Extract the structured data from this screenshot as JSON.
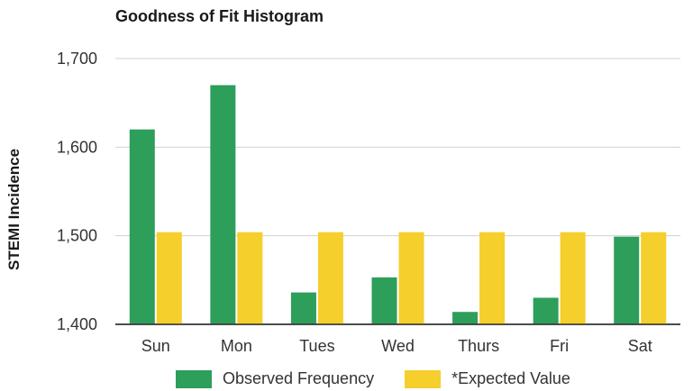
{
  "chart_data": {
    "type": "bar",
    "title": "Goodness of Fit Histogram",
    "xlabel": "",
    "ylabel": "STEMI Incidence",
    "categories": [
      "Sun",
      "Mon",
      "Tues",
      "Wed",
      "Thurs",
      "Fri",
      "Sat"
    ],
    "series": [
      {
        "name": "Observed Frequency",
        "color": "#2e9e5b",
        "values": [
          1620,
          1670,
          1436,
          1453,
          1414,
          1430,
          1499
        ]
      },
      {
        "name": "*Expected Value",
        "color": "#f5cf2b",
        "values": [
          1504,
          1504,
          1504,
          1504,
          1504,
          1504,
          1504
        ]
      }
    ],
    "ylim": [
      1400,
      1700
    ],
    "yticks": [
      1400,
      1500,
      1600,
      1700
    ],
    "ytick_labels": [
      "1,400",
      "1,500",
      "1,600",
      "1,700"
    ],
    "grid": true,
    "legend_position": "bottom"
  }
}
